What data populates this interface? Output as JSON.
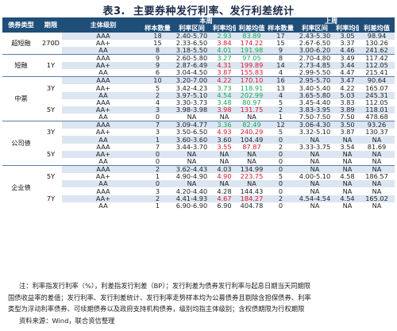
{
  "title": {
    "tag": "表3.",
    "text": "主要券种发行利率、发行利差统计"
  },
  "header": {
    "cat": "债券类型",
    "term": "期限",
    "rating": "主体级别",
    "thisweek": "本周",
    "lastweek": "上周",
    "cols": [
      "样本数量",
      "利率区间",
      "利率均值",
      "利差均值"
    ]
  },
  "rows": [
    {
      "cat": "超短融",
      "term": "270D",
      "rating": "AAA",
      "tw": [
        "18",
        "2.40-5.70",
        "2.93",
        "83.89"
      ],
      "lw": [
        "17",
        "2.43-5.30",
        "3.05",
        "98.94"
      ]
    },
    {
      "cat": "",
      "term": "",
      "rating": "AA+",
      "tw": [
        "15",
        "2.33-6.50",
        "3.84",
        "174.22"
      ],
      "lw": [
        "15",
        "2.67-6.50",
        "3.37",
        "130.26"
      ]
    },
    {
      "cat": "",
      "term": "",
      "rating": "AA",
      "tw": [
        "8",
        "3.18-5.50",
        "4.01",
        "191.98"
      ],
      "lw": [
        "9",
        "3.00-6.20",
        "4.46",
        "241.62"
      ]
    },
    {
      "cat": "短融",
      "term": "1Y",
      "rating": "AAA",
      "tw": [
        "9",
        "2.60-5.80",
        "3.27",
        "97.05"
      ],
      "lw": [
        "8",
        "2.70-4.80",
        "3.49",
        "117.42"
      ]
    },
    {
      "cat": "",
      "term": "",
      "rating": "AA+",
      "tw": [
        "9",
        "2.87-6.49",
        "4.31",
        "199.89"
      ],
      "lw": [
        "14",
        "2.73-4.85",
        "3.44",
        "112.05"
      ]
    },
    {
      "cat": "",
      "term": "",
      "rating": "AA",
      "tw": [
        "6",
        "3.04-4.50",
        "3.87",
        "155.83"
      ],
      "lw": [
        "4",
        "2.99-5.50",
        "4.47",
        "215.41"
      ]
    },
    {
      "cat": "中票",
      "term": "3Y",
      "rating": "AAA",
      "tw": [
        "10",
        "3.20-7.00",
        "4.22",
        "170.10"
      ],
      "lw": [
        "16",
        "2.95-5.70",
        "3.47",
        "90.64"
      ]
    },
    {
      "cat": "",
      "term": "",
      "rating": "AA+",
      "tw": [
        "5",
        "3.42-4.23",
        "3.73",
        "118.91"
      ],
      "lw": [
        "13",
        "3.40-5.40",
        "4.22",
        "165.07"
      ]
    },
    {
      "cat": "",
      "term": "",
      "rating": "AA",
      "tw": [
        "2",
        "3.97-5.10",
        "4.54",
        "202.99"
      ],
      "lw": [
        "4",
        "3.65-5.80",
        "5.03",
        "245.31"
      ]
    },
    {
      "cat": "",
      "term": "5Y",
      "rating": "AAA",
      "tw": [
        "4",
        "3.30-3.73",
        "3.48",
        "80.97"
      ],
      "lw": [
        "5",
        "3.45-4.40",
        "3.83",
        "112.05"
      ]
    },
    {
      "cat": "",
      "term": "",
      "rating": "AA+",
      "tw": [
        "3",
        "3.98-3.98",
        "3.98",
        "131.75"
      ],
      "lw": [
        "2",
        "3.83-3.95",
        "3.89",
        "118.01"
      ]
    },
    {
      "cat": "",
      "term": "",
      "rating": "AA",
      "tw": [
        "0",
        "NA",
        "NA",
        "NA"
      ],
      "lw": [
        "1",
        "7.50-7.50",
        "7.50",
        "478.68"
      ]
    },
    {
      "cat": "公司债",
      "term": "3Y",
      "rating": "AAA",
      "tw": [
        "7",
        "3.09-4.77",
        "3.36",
        "82.49"
      ],
      "lw": [
        "12",
        "3.06-4.30",
        "3.50",
        "93.26"
      ]
    },
    {
      "cat": "",
      "term": "",
      "rating": "AA+",
      "tw": [
        "3",
        "3.50-6.50",
        "4.93",
        "240.29"
      ],
      "lw": [
        "5",
        "3.32-5.10",
        "3.87",
        "130.37"
      ]
    },
    {
      "cat": "",
      "term": "",
      "rating": "AA",
      "tw": [
        "1",
        "3.60-3.60",
        "3.60",
        "104.49"
      ],
      "lw": [
        "0",
        "NA",
        "NA",
        "NA"
      ]
    },
    {
      "cat": "",
      "term": "5Y",
      "rating": "AAA",
      "tw": [
        "7",
        "3.44-3.70",
        "3.55",
        "87.87"
      ],
      "lw": [
        "2",
        "3.33-3.75",
        "3.54",
        "81.69"
      ]
    },
    {
      "cat": "",
      "term": "",
      "rating": "AA+",
      "tw": [
        "0",
        "NA",
        "NA",
        "NA"
      ],
      "lw": [
        "0",
        "NA",
        "NA",
        "NA"
      ]
    },
    {
      "cat": "",
      "term": "",
      "rating": "AA",
      "tw": [
        "0",
        "NA",
        "NA",
        "NA"
      ],
      "lw": [
        "0",
        "NA",
        "NA",
        "NA"
      ]
    },
    {
      "cat": "企业债",
      "term": "5Y",
      "rating": "AAA",
      "tw": [
        "2",
        "3.62-4.43",
        "4.03",
        "134.99"
      ],
      "lw": [
        "0",
        "NA",
        "NA",
        "NA"
      ]
    },
    {
      "cat": "",
      "term": "",
      "rating": "AA+",
      "tw": [
        "1",
        "4.90-4.90",
        "4.90",
        "223.75"
      ],
      "lw": [
        "5",
        "4.00-5.10",
        "4.58",
        "186.57"
      ]
    },
    {
      "cat": "",
      "term": "",
      "rating": "AA",
      "tw": [
        "0",
        "NA",
        "NA",
        "NA"
      ],
      "lw": [
        "0",
        "NA",
        "NA",
        "NA"
      ]
    },
    {
      "cat": "",
      "term": "7Y",
      "rating": "AAA",
      "tw": [
        "3",
        "4.20-4.40",
        "4.28",
        "144.43"
      ],
      "lw": [
        "0",
        "NA",
        "NA",
        "NA"
      ]
    },
    {
      "cat": "",
      "term": "",
      "rating": "AA+",
      "tw": [
        "2",
        "4.41-4.93",
        "4.67",
        "184.27"
      ],
      "lw": [
        "2",
        "4.54-4.54",
        "4.54",
        "165.02"
      ]
    },
    {
      "cat": "",
      "term": "",
      "rating": "AA",
      "tw": [
        "1",
        "6.90-6.90",
        "6.90",
        "404.78"
      ],
      "lw": [
        "0",
        "NA",
        "NA",
        "NA"
      ]
    }
  ],
  "notes": {
    "l1": "注：利率指发行利率（%），利差指发行利差（BP）；发行利差为债券发行利率与起息日期当天同期限",
    "l2": "国债收益率的差值；发行利率、发行利差统计、发行利率走势样本均为公募债券且剔除含担保债券、利率",
    "l3": "类型为浮动利率债券、可续期债券以及政府支持机构债券，级别均指主体级别；含权债期限为行权期限",
    "l4": "资料来源：Wind，联合资信整理"
  },
  "colors": {
    "header": "#1f4e79",
    "shade": "#dbe6f2",
    "up": "#e0142a",
    "down": "#16a84a"
  }
}
